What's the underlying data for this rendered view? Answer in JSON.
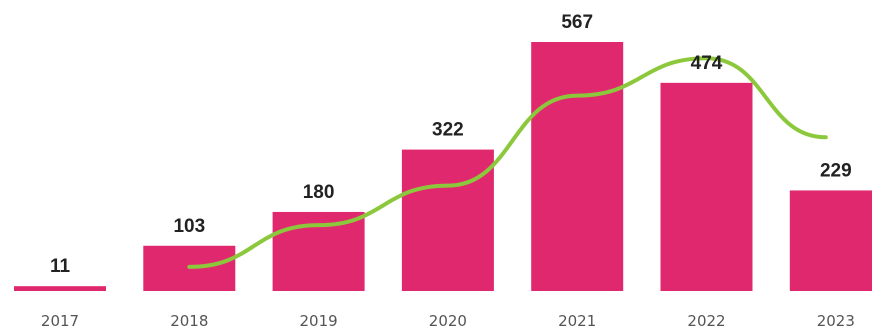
{
  "chart_data": {
    "type": "bar",
    "categories": [
      "2017",
      "2018",
      "2019",
      "2020",
      "2021",
      "2022",
      "2023"
    ],
    "values": [
      11,
      103,
      180,
      322,
      567,
      474,
      229
    ],
    "title": "",
    "xlabel": "",
    "ylabel": "",
    "ylim": [
      0,
      567
    ],
    "grid": false,
    "bar_color": "#e0286e",
    "trend_line": {
      "type": "line",
      "color": "#8cc83c",
      "x": [
        "2018",
        "2019",
        "2020",
        "2021",
        "2022",
        "2023"
      ],
      "values": [
        55,
        150,
        240,
        445,
        530,
        350
      ]
    }
  }
}
